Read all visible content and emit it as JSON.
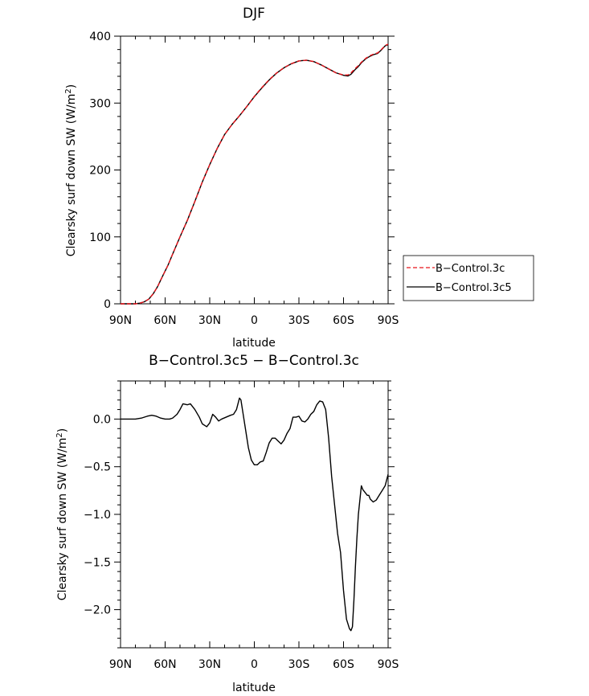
{
  "chart_data": [
    {
      "type": "line",
      "title": "DJF",
      "xlabel": "latitude",
      "ylabel": "Clearsky surf down SW (W/m²)",
      "ylabel_main": "Clearsky surf down SW (W/m",
      "ylabel_sup": "2",
      "ylabel_close": ")",
      "xlim": [
        90,
        -90
      ],
      "ylim": [
        0,
        400
      ],
      "x_tick_values": [
        90,
        60,
        30,
        0,
        -30,
        -60,
        -90
      ],
      "x_tick_labels": [
        "90N",
        "60N",
        "30N",
        "0",
        "30S",
        "60S",
        "90S"
      ],
      "y_tick_values": [
        0,
        100,
        200,
        300,
        400
      ],
      "y_tick_labels": [
        "0",
        "100",
        "200",
        "300",
        "400"
      ],
      "legend_position": "right",
      "series": [
        {
          "name": "B−Control.3c",
          "color": "#e8141b",
          "style": "dashed",
          "x": [
            90,
            85,
            80,
            77,
            74,
            71,
            68,
            65,
            62,
            58,
            55,
            50,
            45,
            40,
            35,
            30,
            25,
            20,
            15,
            10,
            5,
            0,
            -5,
            -10,
            -15,
            -20,
            -25,
            -30,
            -35,
            -40,
            -45,
            -50,
            -55,
            -60,
            -63,
            -65,
            -68,
            -70,
            -72,
            -75,
            -78,
            -80,
            -83,
            -85,
            -88,
            -90
          ],
          "y": [
            0,
            0,
            0,
            1,
            3,
            7,
            15,
            26,
            40,
            58,
            74,
            100,
            125,
            153,
            182,
            208,
            232,
            253,
            268,
            281,
            295,
            310,
            323,
            335,
            345,
            353,
            359,
            363,
            364,
            362,
            357,
            351,
            345,
            342,
            342,
            345,
            352,
            356,
            361,
            367,
            371,
            373,
            375,
            379,
            386,
            388
          ]
        },
        {
          "name": "B−Control.3c5",
          "color": "#000000",
          "style": "solid",
          "x": [
            90,
            85,
            80,
            77,
            74,
            71,
            68,
            65,
            62,
            58,
            55,
            50,
            45,
            40,
            35,
            30,
            25,
            20,
            15,
            10,
            5,
            0,
            -5,
            -10,
            -15,
            -20,
            -25,
            -30,
            -35,
            -40,
            -45,
            -50,
            -55,
            -60,
            -63,
            -65,
            -68,
            -70,
            -72,
            -75,
            -78,
            -80,
            -83,
            -85,
            -88,
            -90
          ],
          "y": [
            0,
            0,
            0,
            1,
            3,
            7,
            15,
            26,
            40,
            58,
            74,
            100,
            125,
            153,
            182,
            208,
            232,
            253,
            268,
            281,
            295,
            309.5,
            322.5,
            334.5,
            344.8,
            352.8,
            358.8,
            363,
            364,
            362,
            357,
            351.1,
            345.2,
            341.5,
            340.5,
            343,
            350.5,
            354.7,
            360.2,
            366.3,
            370.2,
            372.2,
            374.3,
            378.4,
            385.5,
            387.4
          ]
        }
      ]
    },
    {
      "type": "line",
      "title": "B−Control.3c5 − B−Control.3c",
      "xlabel": "latitude",
      "ylabel": "Clearsky surf down SW (W/m²)",
      "ylabel_main": "Clearsky surf down SW (W/m",
      "ylabel_sup": "2",
      "ylabel_close": ")",
      "xlim": [
        90,
        -90
      ],
      "ylim": [
        -2.4,
        0.4
      ],
      "x_tick_values": [
        90,
        60,
        30,
        0,
        -30,
        -60,
        -90
      ],
      "x_tick_labels": [
        "90N",
        "60N",
        "30N",
        "0",
        "30S",
        "60S",
        "90S"
      ],
      "y_tick_values": [
        0.0,
        -0.5,
        -1.0,
        -1.5,
        -2.0
      ],
      "y_tick_labels": [
        "0.0",
        "−0.5",
        "−1.0",
        "−1.5",
        "−2.0"
      ],
      "series": [
        {
          "color": "#000000",
          "style": "solid",
          "x": [
            90,
            85,
            80,
            76,
            72,
            69,
            66,
            63,
            60,
            57,
            55,
            52,
            50,
            48,
            45,
            43,
            40,
            37,
            35,
            32,
            30,
            28,
            26,
            24,
            22,
            19,
            16,
            14,
            12,
            10,
            9,
            8,
            6,
            4,
            2,
            0,
            -2,
            -4,
            -6,
            -8,
            -10,
            -12,
            -14,
            -16,
            -18,
            -20,
            -22,
            -24,
            -26,
            -28,
            -30,
            -32,
            -34,
            -36,
            -38,
            -40,
            -42,
            -44,
            -46,
            -48,
            -50,
            -52,
            -54,
            -56,
            -58,
            -60,
            -62,
            -64,
            -65,
            -66,
            -67,
            -68,
            -69,
            -70,
            -71,
            -72,
            -73,
            -74,
            -75,
            -76,
            -77,
            -78,
            -80,
            -82,
            -84,
            -86,
            -88,
            -90
          ],
          "y": [
            0.0,
            0.0,
            0.0,
            0.01,
            0.03,
            0.04,
            0.03,
            0.01,
            0.0,
            0.0,
            0.01,
            0.05,
            0.1,
            0.16,
            0.15,
            0.16,
            0.1,
            0.02,
            -0.05,
            -0.08,
            -0.04,
            0.05,
            0.02,
            -0.02,
            0.0,
            0.02,
            0.04,
            0.05,
            0.1,
            0.22,
            0.2,
            0.1,
            -0.1,
            -0.3,
            -0.43,
            -0.48,
            -0.48,
            -0.45,
            -0.44,
            -0.35,
            -0.25,
            -0.2,
            -0.2,
            -0.23,
            -0.26,
            -0.22,
            -0.15,
            -0.1,
            0.02,
            0.02,
            0.03,
            -0.02,
            -0.03,
            0.0,
            0.05,
            0.08,
            0.15,
            0.19,
            0.18,
            0.1,
            -0.2,
            -0.6,
            -0.9,
            -1.2,
            -1.4,
            -1.8,
            -2.1,
            -2.2,
            -2.22,
            -2.18,
            -1.9,
            -1.55,
            -1.25,
            -1.0,
            -0.85,
            -0.7,
            -0.74,
            -0.76,
            -0.78,
            -0.8,
            -0.8,
            -0.84,
            -0.87,
            -0.85,
            -0.8,
            -0.75,
            -0.7,
            -0.58
          ]
        }
      ]
    }
  ]
}
